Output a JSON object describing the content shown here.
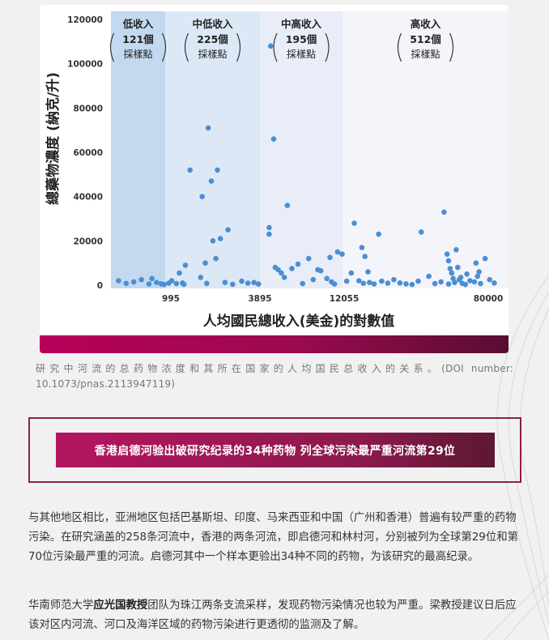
{
  "chart_data": {
    "type": "scatter",
    "ylabel": "總藥物濃度 (納克/升)",
    "xlabel": "人均國民總收入(美金)的對數值",
    "y_ticks": [
      "0",
      "20000",
      "40000",
      "60000",
      "80000",
      "100000",
      "120000"
    ],
    "ylim": [
      0,
      120000
    ],
    "x_ticks": [
      "995",
      "3895",
      "12055",
      "80000"
    ],
    "bands": [
      {
        "label": "低收入",
        "count": "121個",
        "unit": "採樣點",
        "color": "#c2d9ef"
      },
      {
        "label": "中低收入",
        "count": "225個",
        "unit": "採樣點",
        "color": "#dce8f6"
      },
      {
        "label": "中高收入",
        "count": "195個",
        "unit": "採樣點",
        "color": "#e8edf8"
      },
      {
        "label": "高收入",
        "count": "512個",
        "unit": "採樣點",
        "color": "#f4f4fb"
      }
    ],
    "point_color": "#4a8fd3",
    "points": [
      [
        2.55,
        2000
      ],
      [
        2.6,
        800
      ],
      [
        2.65,
        1500
      ],
      [
        2.7,
        2500
      ],
      [
        2.75,
        500
      ],
      [
        2.8,
        1200
      ],
      [
        2.85,
        300
      ],
      [
        2.9,
        2000
      ],
      [
        2.93,
        700
      ],
      [
        2.97,
        1000
      ],
      [
        2.77,
        3000
      ],
      [
        2.83,
        600
      ],
      [
        2.88,
        900
      ],
      [
        2.95,
        5500
      ],
      [
        2.99,
        9000
      ],
      [
        2.98,
        400
      ],
      [
        3.02,
        52000
      ],
      [
        3.1,
        40000
      ],
      [
        3.14,
        71000
      ],
      [
        3.16,
        47000
      ],
      [
        3.2,
        52000
      ],
      [
        3.17,
        20000
      ],
      [
        3.22,
        21000
      ],
      [
        3.27,
        25000
      ],
      [
        3.09,
        3500
      ],
      [
        3.12,
        10000
      ],
      [
        3.19,
        12000
      ],
      [
        3.13,
        800
      ],
      [
        3.25,
        1200
      ],
      [
        3.3,
        400
      ],
      [
        3.36,
        1800
      ],
      [
        3.4,
        900
      ],
      [
        3.44,
        1200
      ],
      [
        3.47,
        500
      ],
      [
        3.55,
        108000
      ],
      [
        3.57,
        66000
      ],
      [
        3.54,
        26000
      ],
      [
        3.54,
        23000
      ],
      [
        3.58,
        8000
      ],
      [
        3.6,
        7000
      ],
      [
        3.62,
        5500
      ],
      [
        3.66,
        36000
      ],
      [
        3.64,
        3500
      ],
      [
        3.69,
        7500
      ],
      [
        3.73,
        9500
      ],
      [
        3.76,
        700
      ],
      [
        3.8,
        12000
      ],
      [
        3.83,
        2500
      ],
      [
        3.86,
        7000
      ],
      [
        3.88,
        6500
      ],
      [
        3.92,
        3000
      ],
      [
        3.95,
        1500
      ],
      [
        3.99,
        15000
      ],
      [
        4.02,
        14000
      ],
      [
        4.05,
        1800
      ],
      [
        4.08,
        5500
      ],
      [
        3.94,
        12500
      ],
      [
        3.97,
        500
      ],
      [
        4.1,
        28000
      ],
      [
        4.13,
        2000
      ],
      [
        4.15,
        17000
      ],
      [
        4.17,
        13000
      ],
      [
        4.19,
        6000
      ],
      [
        4.16,
        800
      ],
      [
        4.2,
        1200
      ],
      [
        4.23,
        500
      ],
      [
        4.26,
        23000
      ],
      [
        4.28,
        1800
      ],
      [
        4.32,
        900
      ],
      [
        4.36,
        2500
      ],
      [
        4.4,
        1000
      ],
      [
        4.44,
        600
      ],
      [
        4.48,
        300
      ],
      [
        4.52,
        1800
      ],
      [
        4.54,
        24000
      ],
      [
        4.59,
        4000
      ],
      [
        4.63,
        700
      ],
      [
        4.67,
        1500
      ],
      [
        4.69,
        33000
      ],
      [
        4.71,
        14000
      ],
      [
        4.72,
        11000
      ],
      [
        4.73,
        7500
      ],
      [
        4.74,
        5500
      ],
      [
        4.75,
        3000
      ],
      [
        4.76,
        1200
      ],
      [
        4.77,
        16000
      ],
      [
        4.78,
        8000
      ],
      [
        4.72,
        500
      ],
      [
        4.79,
        2500
      ],
      [
        4.8,
        3500
      ],
      [
        4.81,
        800
      ],
      [
        4.83,
        300
      ],
      [
        4.86,
        2000
      ],
      [
        4.89,
        1500
      ],
      [
        4.9,
        10000
      ],
      [
        4.91,
        4000
      ],
      [
        4.93,
        700
      ],
      [
        4.96,
        12000
      ],
      [
        4.99,
        2500
      ],
      [
        5.02,
        1000
      ],
      [
        4.84,
        5000
      ],
      [
        4.92,
        6000
      ]
    ]
  },
  "caption": "研究中河流的总药物浓度和其所在国家的人均国民总收入的关系。(DOI number: 10.1073/pnas.2113947119)",
  "headline": "香港启德河验出破研究纪录的34种药物 列全球污染最严重河流第29位",
  "paragraph1": "与其他地区相比，亚洲地区包括巴基斯坦、印度、马来西亚和中国（广州和香港）普遍有较严重的药物污染。在研究涵盖的258条河流中，香港的两条河流，即启德河和林村河，分别被列为全球第29位和第70位污染最严重的河流。启德河其中一个样本更验出34种不同的药物，为该研究的最高纪录。",
  "paragraph2": {
    "before": "华南师范大学",
    "bold": "应光国教授",
    "after": "团队为珠江两条支流采样，发现药物污染情况也较为严重。梁教授建议日后应该对区内河流、河口及海洋区域的药物污染进行更透彻的监测及了解。"
  }
}
